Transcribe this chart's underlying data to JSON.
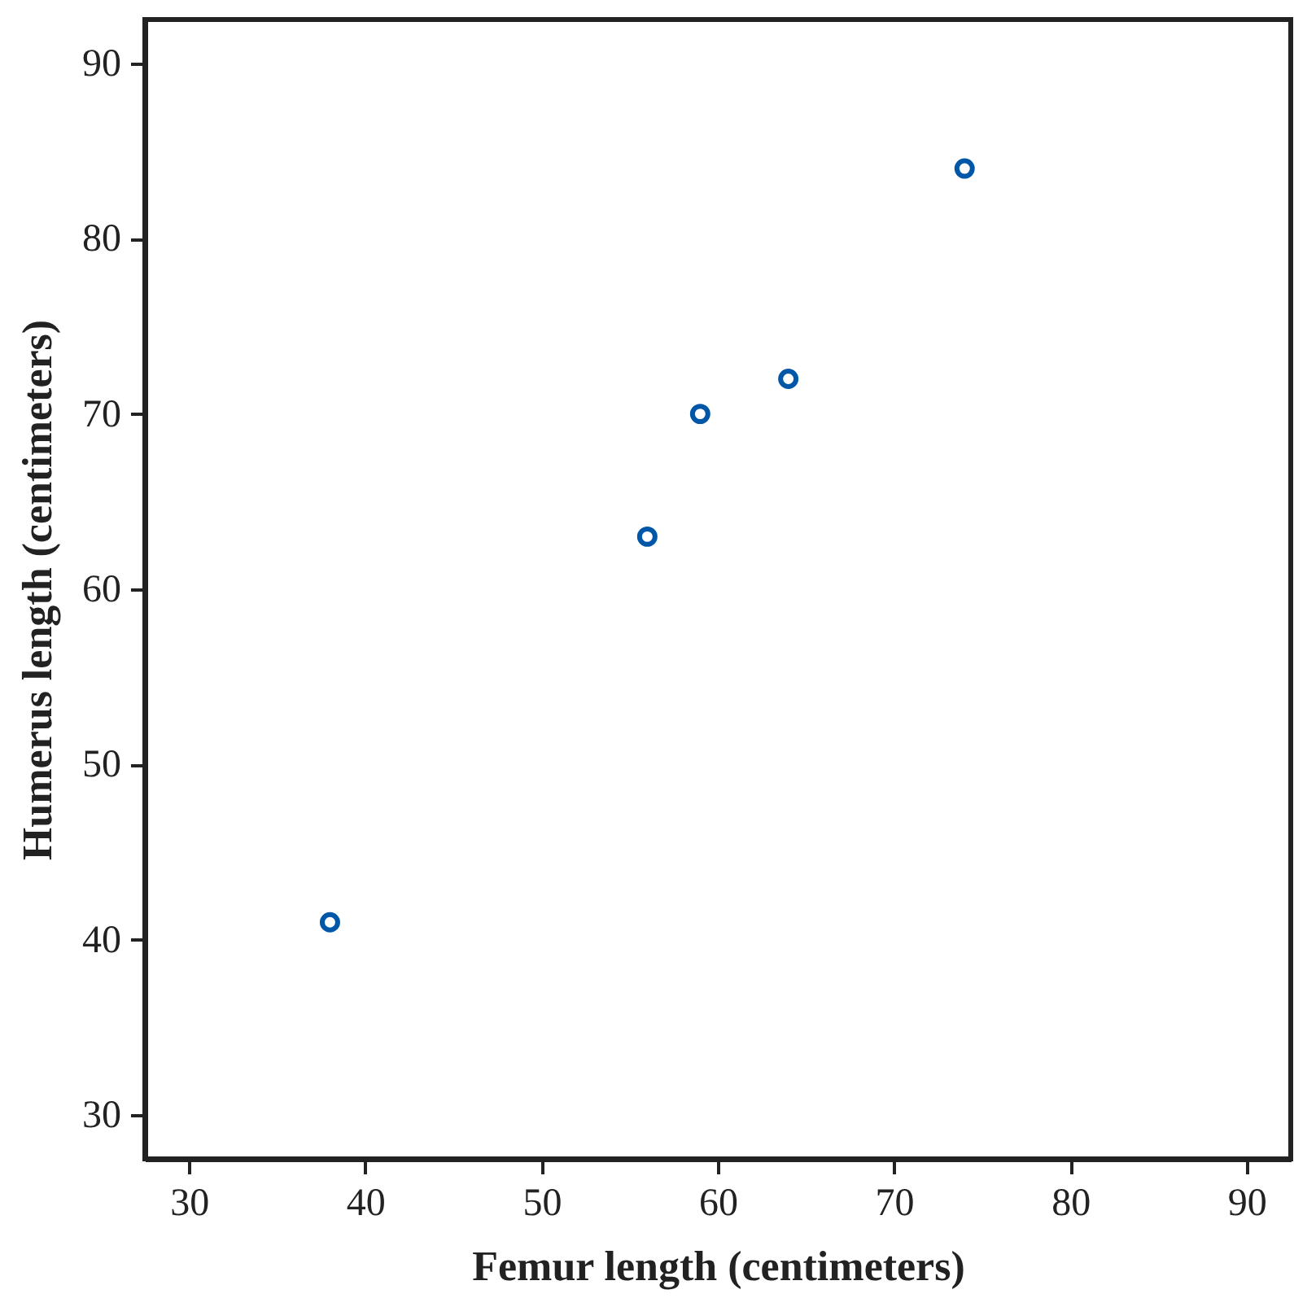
{
  "chart_data": {
    "type": "scatter",
    "xlabel": "Femur length (centimeters)",
    "ylabel": "Humerus length (centimeters)",
    "x": [
      38,
      56,
      59,
      64,
      74
    ],
    "series": [
      {
        "color": "#0057a8",
        "values": [
          41,
          63,
          70,
          72,
          84
        ]
      }
    ],
    "xlim": [
      27.5,
      92.5
    ],
    "ylim": [
      27.5,
      92.5
    ],
    "xticks": [
      30,
      40,
      50,
      60,
      70,
      80,
      90
    ],
    "yticks": [
      30,
      40,
      50,
      60,
      70,
      80,
      90
    ],
    "grid": false,
    "marker": "circle"
  }
}
